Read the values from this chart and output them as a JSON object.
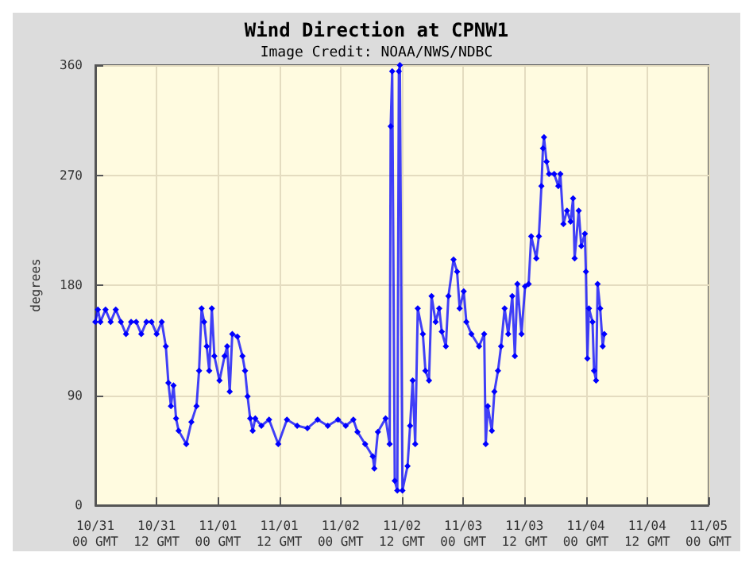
{
  "chart_data": {
    "type": "line",
    "title": "Wind Direction at CPNW1",
    "subtitle": "Image Credit: NOAA/NWS/NDBC",
    "ylabel": "degrees",
    "xlim": [
      "--10-31T00:00",
      "--11-05T00:00"
    ],
    "ylim": [
      0,
      360
    ],
    "yticks": [
      0,
      90,
      180,
      270,
      360
    ],
    "xticks": [
      {
        "value": "--10-31T00:00",
        "label": "10/31\n00 GMT"
      },
      {
        "value": "--10-31T12:00",
        "label": "10/31\n12 GMT"
      },
      {
        "value": "--11-01T00:00",
        "label": "11/01\n00 GMT"
      },
      {
        "value": "--11-01T12:00",
        "label": "11/01\n12 GMT"
      },
      {
        "value": "--11-02T00:00",
        "label": "11/02\n00 GMT"
      },
      {
        "value": "--11-02T12:00",
        "label": "11/02\n12 GMT"
      },
      {
        "value": "--11-03T00:00",
        "label": "11/03\n00 GMT"
      },
      {
        "value": "--11-03T12:00",
        "label": "11/03\n12 GMT"
      },
      {
        "value": "--11-04T00:00",
        "label": "11/04\n00 GMT"
      },
      {
        "value": "--11-04T12:00",
        "label": "11/04\n12 GMT"
      },
      {
        "value": "--11-05T00:00",
        "label": "11/05\n00 GMT"
      }
    ],
    "grid": true,
    "marker": "diamond",
    "line_style": "solid",
    "series": [
      {
        "color": "#0000ff",
        "x": [
          "--10-31T00:00",
          "--10-31T00:30",
          "--10-31T01:00",
          "--10-31T02:00",
          "--10-31T03:00",
          "--10-31T04:00",
          "--10-31T05:00",
          "--10-31T06:00",
          "--10-31T07:00",
          "--10-31T08:00",
          "--10-31T09:00",
          "--10-31T10:00",
          "--10-31T11:00",
          "--10-31T12:00",
          "--10-31T13:00",
          "--10-31T13:48",
          "--10-31T14:18",
          "--10-31T14:48",
          "--10-31T15:18",
          "--10-31T15:48",
          "--10-31T16:18",
          "--10-31T17:48",
          "--10-31T18:48",
          "--10-31T19:48",
          "--10-31T20:18",
          "--10-31T20:48",
          "--10-31T21:18",
          "--10-31T21:48",
          "--10-31T22:18",
          "--10-31T22:48",
          "--10-31T23:18",
          "--11-01T00:18",
          "--11-01T01:18",
          "--11-01T01:48",
          "--11-01T02:18",
          "--11-01T02:48",
          "--11-01T03:48",
          "--11-01T04:48",
          "--11-01T05:18",
          "--11-01T05:48",
          "--11-01T06:18",
          "--11-01T06:48",
          "--11-01T07:18",
          "--11-01T08:30",
          "--11-01T10:00",
          "--11-01T11:48",
          "--11-01T13:30",
          "--11-01T15:30",
          "--11-01T17:30",
          "--11-01T19:30",
          "--11-01T21:30",
          "--11-01T23:30",
          "--11-02T01:00",
          "--11-02T02:30",
          "--11-02T03:18",
          "--11-02T04:48",
          "--11-02T06:18",
          "--11-02T06:36",
          "--11-02T07:18",
          "--11-02T08:48",
          "--11-02T09:36",
          "--11-02T09:48",
          "--11-02T10:06",
          "--11-02T10:36",
          "--11-02T11:06",
          "--11-02T11:24",
          "--11-02T11:36",
          "--11-02T12:06",
          "--11-02T13:06",
          "--11-02T13:36",
          "--11-02T14:06",
          "--11-02T14:36",
          "--11-02T15:06",
          "--11-02T16:06",
          "--11-02T16:36",
          "--11-02T17:18",
          "--11-02T17:48",
          "--11-02T18:36",
          "--11-02T19:18",
          "--11-02T19:48",
          "--11-02T20:36",
          "--11-02T21:06",
          "--11-02T22:06",
          "--11-02T22:48",
          "--11-02T23:18",
          "--11-03T00:06",
          "--11-03T00:36",
          "--11-03T01:36",
          "--11-03T03:06",
          "--11-03T04:06",
          "--11-03T04:24",
          "--11-03T04:48",
          "--11-03T05:36",
          "--11-03T06:06",
          "--11-03T06:48",
          "--11-03T07:24",
          "--11-03T08:06",
          "--11-03T08:48",
          "--11-03T09:36",
          "--11-03T10:06",
          "--11-03T10:36",
          "--11-03T11:24",
          "--11-03T12:06",
          "--11-03T12:48",
          "--11-03T13:18",
          "--11-03T14:18",
          "--11-03T14:48",
          "--11-03T15:18",
          "--11-03T15:36",
          "--11-03T15:48",
          "--11-03T16:18",
          "--11-03T16:48",
          "--11-03T17:48",
          "--11-03T18:36",
          "--11-03T19:00",
          "--11-03T19:36",
          "--11-03T20:18",
          "--11-03T21:00",
          "--11-03T21:30",
          "--11-03T21:48",
          "--11-03T22:36",
          "--11-03T23:06",
          "--11-03T23:48",
          "--11-04T00:00",
          "--11-04T00:18",
          "--11-04T00:36",
          "--11-04T01:18",
          "--11-04T01:36",
          "--11-04T02:00",
          "--11-04T02:18",
          "--11-04T02:48",
          "--11-04T03:18",
          "--11-04T03:36"
        ],
        "values": [
          150,
          160,
          150,
          160,
          150,
          160,
          150,
          140,
          150,
          150,
          140,
          150,
          150,
          140,
          150,
          130,
          100,
          81,
          98,
          71,
          61,
          50,
          68,
          81,
          110,
          161,
          150,
          130,
          110,
          161,
          122,
          102,
          122,
          130,
          93,
          140,
          138,
          122,
          110,
          89,
          71,
          61,
          71,
          65,
          70,
          50,
          70,
          65,
          63,
          70,
          65,
          70,
          65,
          70,
          60,
          50,
          40,
          30,
          60,
          71,
          50,
          310,
          355,
          20,
          12,
          355,
          360,
          12,
          32,
          65,
          102,
          50,
          161,
          140,
          110,
          102,
          171,
          150,
          161,
          142,
          130,
          171,
          201,
          191,
          161,
          175,
          150,
          140,
          130,
          140,
          50,
          81,
          61,
          93,
          110,
          130,
          161,
          140,
          171,
          122,
          181,
          140,
          179,
          181,
          220,
          202,
          220,
          261,
          292,
          301,
          281,
          271,
          271,
          261,
          271,
          230,
          241,
          232,
          251,
          202,
          241,
          212,
          222,
          191,
          120,
          161,
          150,
          110,
          102,
          181,
          161,
          130,
          140
        ]
      }
    ]
  }
}
